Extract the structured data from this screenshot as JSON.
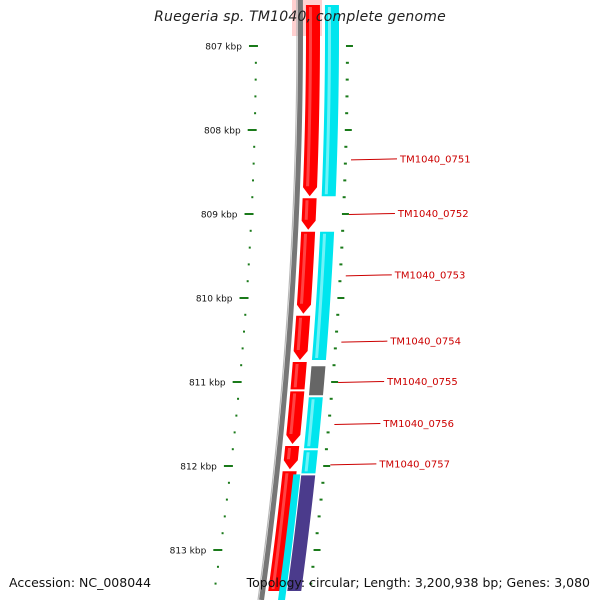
{
  "title": "Ruegeria sp. TM1040, complete genome",
  "accession_text": "Accession: NC_008044",
  "summary_text": "Topology: circular; Length: 3,200,938 bp; Genes: 3,080",
  "colors": {
    "backbone": "#777777",
    "forward_feature": "#ff0000",
    "reverse_feature": "#00e5ee",
    "gray_feature": "#666666",
    "purple_feature": "#4b3b8c",
    "ticks": "#1a7a1a",
    "labels": "#cc0000"
  },
  "scale": {
    "unit": "kbp",
    "major_ticks": [
      {
        "kbp": 807,
        "label": "807 kbp"
      },
      {
        "kbp": 808,
        "label": "808 kbp"
      },
      {
        "kbp": 809,
        "label": "809 kbp"
      },
      {
        "kbp": 810,
        "label": "810 kbp"
      },
      {
        "kbp": 811,
        "label": "811 kbp"
      },
      {
        "kbp": 812,
        "label": "812 kbp"
      },
      {
        "kbp": 813,
        "label": "813 kbp"
      }
    ]
  },
  "forward_features": [
    {
      "start": 806.5,
      "end": 808.8,
      "arrow": true
    },
    {
      "start": 808.8,
      "end": 809.2,
      "arrow": true
    },
    {
      "start": 809.2,
      "end": 810.2,
      "arrow": true
    },
    {
      "start": 810.2,
      "end": 810.75,
      "arrow": true
    },
    {
      "start": 810.75,
      "end": 811.1,
      "arrow": false
    },
    {
      "start": 811.1,
      "end": 811.75,
      "arrow": true
    },
    {
      "start": 811.75,
      "end": 812.05,
      "arrow": true
    },
    {
      "start": 812.05,
      "end": 813.5,
      "arrow": false
    }
  ],
  "reverse_features": [
    {
      "start": 806.5,
      "end": 808.8,
      "kind": "cyan"
    },
    {
      "start": 809.2,
      "end": 810.75,
      "kind": "cyan"
    },
    {
      "start": 810.8,
      "end": 811.17,
      "kind": "gray"
    },
    {
      "start": 811.17,
      "end": 811.8,
      "kind": "cyan"
    },
    {
      "start": 811.8,
      "end": 812.1,
      "kind": "cyan"
    },
    {
      "start": 812.1,
      "end": 813.5,
      "kind": "purple"
    }
  ],
  "gene_labels": [
    {
      "name": "TM1040_0751",
      "pos": 808.35
    },
    {
      "name": "TM1040_0752",
      "pos": 809.0
    },
    {
      "name": "TM1040_0753",
      "pos": 809.73
    },
    {
      "name": "TM1040_0754",
      "pos": 810.52
    },
    {
      "name": "TM1040_0755",
      "pos": 811.0
    },
    {
      "name": "TM1040_0756",
      "pos": 811.5
    },
    {
      "name": "TM1040_0757",
      "pos": 811.98
    }
  ]
}
